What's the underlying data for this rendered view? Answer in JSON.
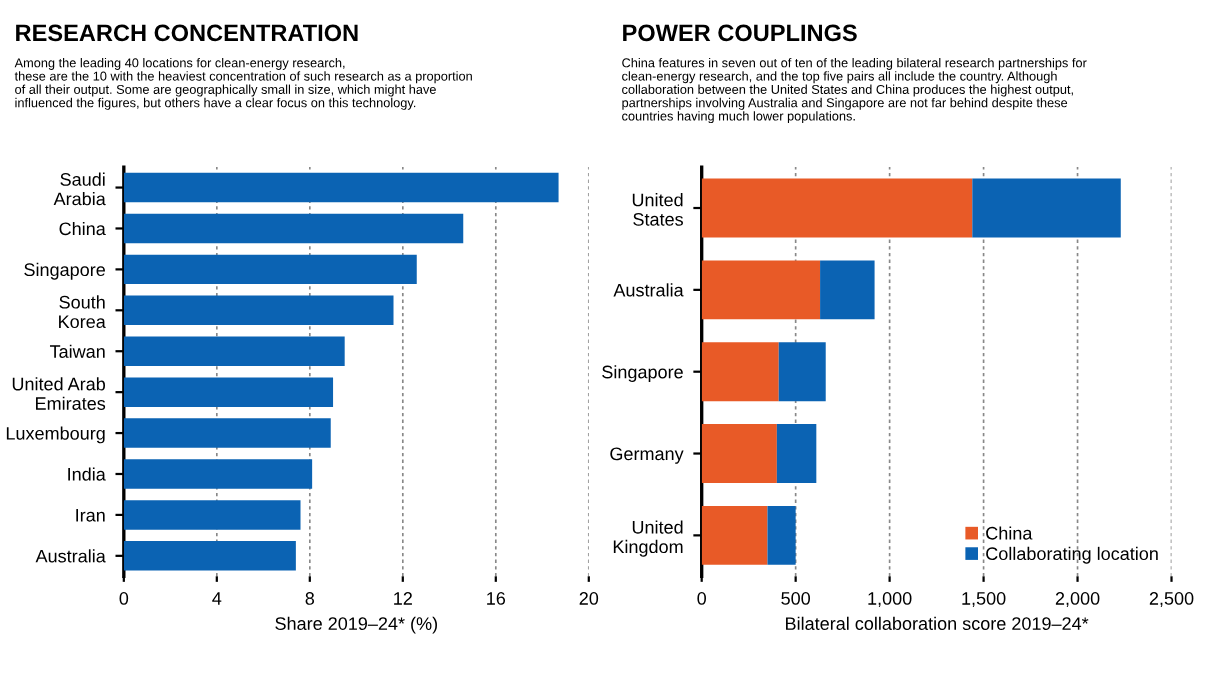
{
  "chart_data": [
    {
      "type": "bar",
      "orientation": "horizontal",
      "title": "RESEARCH CONCENTRATION",
      "subtitle": "Among the leading 40 locations for clean-energy research,\nthese are the 10 with the heaviest concentration of such research as a proportion\nof all their output. Some are geographically small in size, which might have\ninfluenced the figures, but others have a clear focus on this technology.",
      "categories": [
        "Saudi\nArabia",
        "China",
        "Singapore",
        "South\nKorea",
        "Taiwan",
        "United Arab\nEmirates",
        "Luxembourg",
        "India",
        "Iran",
        "Australia"
      ],
      "values": [
        18.7,
        14.6,
        12.6,
        11.6,
        9.5,
        9.0,
        8.9,
        8.1,
        7.6,
        7.4
      ],
      "color": "#0b63b3",
      "xlabel": "Share 2019–24* (%)",
      "xlim": [
        0,
        20
      ],
      "xticks": [
        0,
        4,
        8,
        12,
        16,
        20
      ],
      "grid": "x"
    },
    {
      "type": "bar",
      "orientation": "horizontal",
      "stacked": true,
      "title": "POWER COUPLINGS",
      "subtitle": "China features in seven out of ten of the leading bilateral research partnerships for\nclean-energy research, and the top five pairs all include the country. Although\ncollaboration between the United States and China produces the highest output,\npartnerships involving Australia and Singapore are not far behind despite these\ncountries having much lower populations.",
      "categories": [
        "United\nStates",
        "Australia",
        "Singapore",
        "Germany",
        "United\nKingdom"
      ],
      "series": [
        {
          "name": "China",
          "color": "#e85a27",
          "values": [
            1440,
            630,
            410,
            400,
            350
          ]
        },
        {
          "name": "Collaborating location",
          "color": "#0b63b3",
          "values": [
            790,
            290,
            250,
            210,
            150
          ]
        }
      ],
      "xlabel": "Bilateral collaboration score 2019–24*",
      "xlim": [
        0,
        2500
      ],
      "xticks": [
        0,
        {
          "value": 500,
          "label": "500"
        },
        {
          "value": 1000,
          "label": "1,000"
        },
        {
          "value": 1500,
          "label": "1,500"
        },
        {
          "value": 2000,
          "label": "2,000"
        },
        {
          "value": 2500,
          "label": "2,500"
        }
      ],
      "grid": "x",
      "legend": "bottom right"
    }
  ]
}
